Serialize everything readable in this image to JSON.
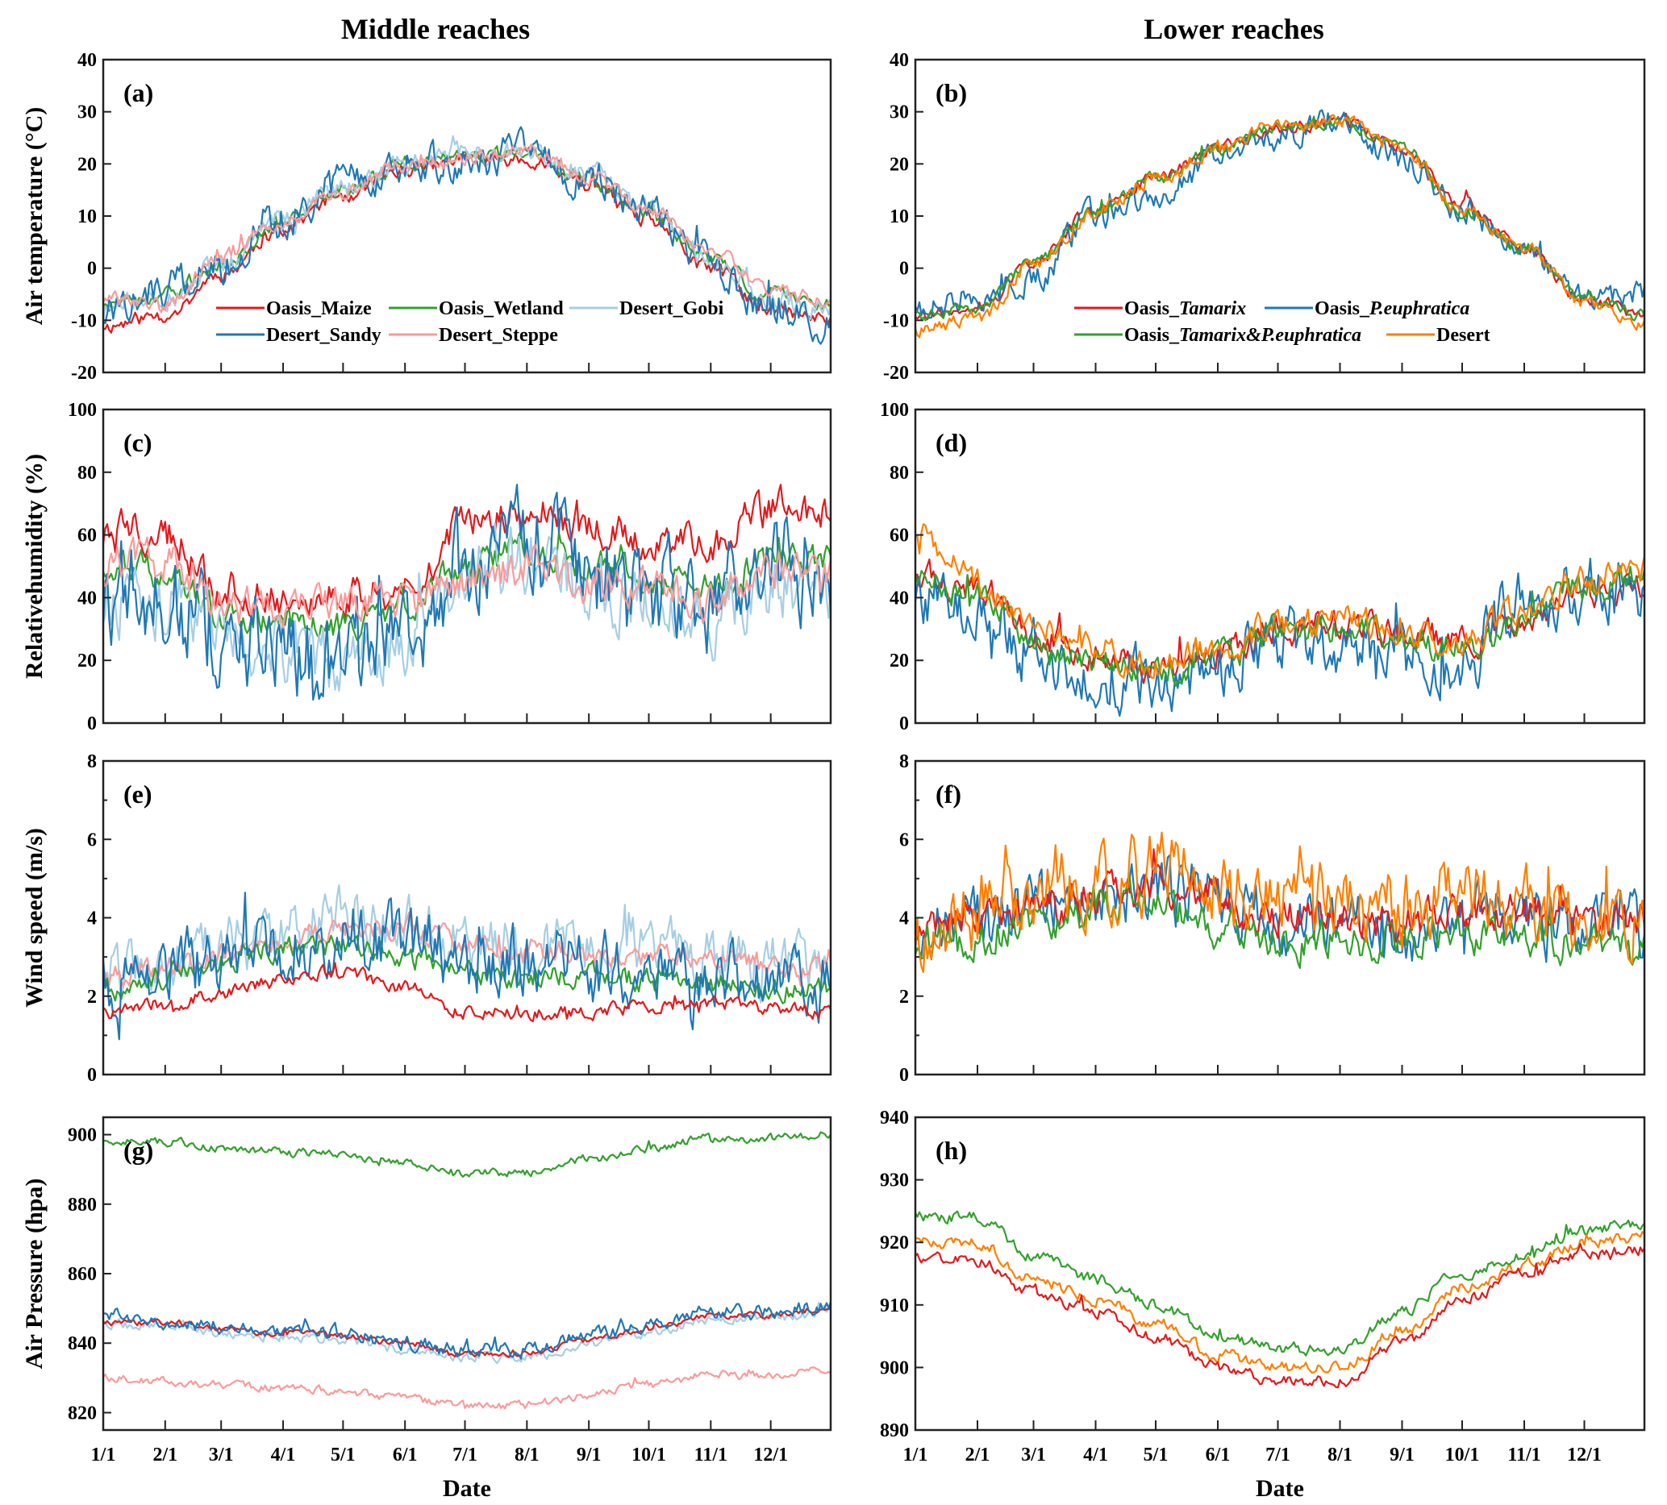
{
  "figure": {
    "column_titles": [
      "Middle reaches",
      "Lower reaches"
    ],
    "x_label": "Date"
  },
  "chart_data": [
    {
      "id": "a",
      "type": "line",
      "tag": "(a)",
      "column": "Middle reaches",
      "title": "",
      "xlabel": "",
      "ylabel": "Air temperature (°C)",
      "ylim": [
        -20,
        40
      ],
      "yticks": [
        -20,
        -10,
        0,
        10,
        20,
        30,
        40
      ],
      "x": [
        "1/1",
        "2/1",
        "3/1",
        "4/1",
        "5/1",
        "6/1",
        "7/1",
        "8/1",
        "9/1",
        "10/1",
        "11/1",
        "12/1",
        "12/31"
      ],
      "xticks": [
        "1/1",
        "2/1",
        "3/1",
        "4/1",
        "5/1",
        "6/1",
        "7/1",
        "8/1",
        "9/1",
        "10/1",
        "11/1",
        "12/1"
      ],
      "show_xticklabels": false,
      "legend": {
        "position": "bottom-center",
        "columns": 3
      },
      "series": [
        {
          "name": "Oasis_Maize",
          "color": "#e31a1c",
          "noise": 1.2,
          "values": [
            -11,
            -9,
            -1,
            8,
            14,
            19,
            21,
            21,
            16,
            9,
            0,
            -8,
            -10
          ]
        },
        {
          "name": "Oasis_Wetland",
          "color": "#33a02c",
          "noise": 1.2,
          "values": [
            -7,
            -5,
            1,
            9,
            15,
            20,
            21,
            22,
            17,
            10,
            2,
            -5,
            -7
          ]
        },
        {
          "name": "Desert_Gobi",
          "color": "#a6cee3",
          "noise": 1.8,
          "values": [
            -8,
            -5,
            1,
            9,
            15,
            20,
            22,
            22,
            18,
            11,
            1,
            -6,
            -8
          ]
        },
        {
          "name": "Desert_Sandy",
          "color": "#1f78b4",
          "noise": 3.0,
          "values": [
            -9,
            -4,
            0,
            10,
            16,
            20,
            21,
            22,
            18,
            11,
            1,
            -8,
            -11
          ]
        },
        {
          "name": "Desert_Steppe",
          "color": "#fb9a99",
          "noise": 1.2,
          "values": [
            -6,
            -7,
            2,
            9,
            15,
            20,
            21,
            23,
            17,
            11,
            3,
            -4,
            -6
          ]
        }
      ]
    },
    {
      "id": "b",
      "type": "line",
      "tag": "(b)",
      "column": "Lower reaches",
      "title": "",
      "xlabel": "",
      "ylabel": "",
      "ylim": [
        -20,
        40
      ],
      "yticks": [
        -20,
        -10,
        0,
        10,
        20,
        30,
        40
      ],
      "x": [
        "1/1",
        "2/1",
        "3/1",
        "4/1",
        "5/1",
        "6/1",
        "7/1",
        "8/1",
        "9/1",
        "10/1",
        "11/1",
        "12/1",
        "12/31"
      ],
      "xticks": [
        "1/1",
        "2/1",
        "3/1",
        "4/1",
        "5/1",
        "6/1",
        "7/1",
        "8/1",
        "9/1",
        "10/1",
        "11/1",
        "12/1"
      ],
      "show_xticklabels": false,
      "legend": {
        "position": "bottom-center",
        "columns": 2
      },
      "series": [
        {
          "name": "Oasis_Tamarix",
          "name_parts": [
            "Oasis_",
            "Tamarix"
          ],
          "color": "#e31a1c",
          "noise": 1.0,
          "values": [
            -9,
            -8,
            1,
            11,
            17,
            23,
            27,
            28,
            23,
            12,
            4,
            -6,
            -9
          ]
        },
        {
          "name": "Oasis_P.euphratica",
          "name_parts": [
            "Oasis_",
            "P.euphratica"
          ],
          "color": "#1f78b4",
          "noise": 2.2,
          "values": [
            -8,
            -5,
            -2,
            10,
            14,
            22,
            25,
            28,
            21,
            12,
            3,
            -6,
            -5
          ]
        },
        {
          "name": "Oasis_Tamarix&P.euphratica",
          "name_parts": [
            "Oasis_",
            "Tamarix&P.euphratica"
          ],
          "color": "#33a02c",
          "noise": 1.0,
          "values": [
            -9,
            -8,
            1,
            11,
            17,
            23,
            27,
            28,
            23,
            11,
            4,
            -6,
            -9
          ]
        },
        {
          "name": "Desert",
          "name_parts": [
            "Desert",
            ""
          ],
          "color": "#ff7f00",
          "noise": 1.2,
          "values": [
            -12,
            -10,
            1,
            11,
            17,
            23,
            28,
            28,
            23,
            11,
            4,
            -7,
            -11
          ]
        }
      ]
    },
    {
      "id": "c",
      "type": "line",
      "tag": "(c)",
      "column": "Middle reaches",
      "title": "",
      "xlabel": "",
      "ylabel": "Relativehumidity (%)",
      "ylim": [
        0,
        100
      ],
      "yticks": [
        0,
        20,
        40,
        60,
        80,
        100
      ],
      "x": [
        "1/1",
        "2/1",
        "3/1",
        "4/1",
        "5/1",
        "6/1",
        "7/1",
        "8/1",
        "9/1",
        "10/1",
        "11/1",
        "12/1",
        "12/31"
      ],
      "xticks": [
        "1/1",
        "2/1",
        "3/1",
        "4/1",
        "5/1",
        "6/1",
        "7/1",
        "8/1",
        "9/1",
        "10/1",
        "11/1",
        "12/1"
      ],
      "show_xticklabels": false,
      "series": [
        {
          "name": "Oasis_Maize",
          "color": "#e31a1c",
          "noise": 5,
          "values": [
            62,
            60,
            42,
            40,
            40,
            42,
            62,
            68,
            62,
            58,
            55,
            68,
            66
          ]
        },
        {
          "name": "Oasis_Wetland",
          "color": "#33a02c",
          "noise": 4,
          "values": [
            52,
            48,
            35,
            32,
            30,
            38,
            50,
            55,
            50,
            46,
            44,
            52,
            52
          ]
        },
        {
          "name": "Desert_Gobi",
          "color": "#a6cee3",
          "noise": 9,
          "values": [
            40,
            38,
            28,
            22,
            18,
            25,
            48,
            52,
            45,
            38,
            32,
            45,
            45
          ]
        },
        {
          "name": "Desert_Sandy",
          "color": "#1f78b4",
          "noise": 13,
          "values": [
            44,
            40,
            30,
            25,
            20,
            28,
            50,
            55,
            48,
            42,
            40,
            52,
            50
          ]
        },
        {
          "name": "Desert_Steppe",
          "color": "#fb9a99",
          "noise": 5,
          "values": [
            50,
            52,
            38,
            34,
            38,
            40,
            45,
            50,
            45,
            42,
            38,
            50,
            46
          ]
        }
      ]
    },
    {
      "id": "d",
      "type": "line",
      "tag": "(d)",
      "column": "Lower reaches",
      "title": "",
      "xlabel": "",
      "ylabel": "",
      "ylim": [
        0,
        100
      ],
      "yticks": [
        0,
        20,
        40,
        60,
        80,
        100
      ],
      "x": [
        "1/1",
        "2/1",
        "3/1",
        "4/1",
        "5/1",
        "6/1",
        "7/1",
        "8/1",
        "9/1",
        "10/1",
        "11/1",
        "12/1",
        "12/31"
      ],
      "xticks": [
        "1/1",
        "2/1",
        "3/1",
        "4/1",
        "5/1",
        "6/1",
        "7/1",
        "8/1",
        "9/1",
        "10/1",
        "11/1",
        "12/1"
      ],
      "show_xticklabels": false,
      "series": [
        {
          "name": "Oasis_Tamarix",
          "color": "#e31a1c",
          "noise": 4,
          "values": [
            48,
            42,
            28,
            22,
            18,
            22,
            30,
            32,
            28,
            26,
            34,
            42,
            44
          ]
        },
        {
          "name": "Oasis_P.euphratica",
          "color": "#1f78b4",
          "noise": 8,
          "values": [
            40,
            35,
            22,
            16,
            14,
            18,
            26,
            26,
            22,
            20,
            38,
            40,
            42
          ]
        },
        {
          "name": "Oasis_Tamarix&P.euphratica",
          "color": "#33a02c",
          "noise": 4,
          "values": [
            48,
            40,
            27,
            21,
            17,
            21,
            29,
            30,
            27,
            24,
            33,
            44,
            46
          ]
        },
        {
          "name": "Desert",
          "color": "#ff7f00",
          "noise": 4,
          "values": [
            60,
            45,
            30,
            24,
            19,
            23,
            31,
            33,
            28,
            26,
            36,
            46,
            48
          ]
        }
      ]
    },
    {
      "id": "e",
      "type": "line",
      "tag": "(e)",
      "column": "Middle reaches",
      "title": "",
      "xlabel": "",
      "ylabel": "Wind speed (m/s)",
      "ylim": [
        0,
        8
      ],
      "yticks": [
        0,
        2,
        4,
        6,
        8
      ],
      "x": [
        "1/1",
        "2/1",
        "3/1",
        "4/1",
        "5/1",
        "6/1",
        "7/1",
        "8/1",
        "9/1",
        "10/1",
        "11/1",
        "12/1",
        "12/31"
      ],
      "xticks": [
        "1/1",
        "2/1",
        "3/1",
        "4/1",
        "5/1",
        "6/1",
        "7/1",
        "8/1",
        "9/1",
        "10/1",
        "11/1",
        "12/1"
      ],
      "show_xticklabels": false,
      "series": [
        {
          "name": "Desert_Gobi",
          "color": "#a6cee3",
          "noise": 0.6,
          "values": [
            2.6,
            2.9,
            3.2,
            3.6,
            4.0,
            3.7,
            3.4,
            3.3,
            3.2,
            3.1,
            3.0,
            2.8,
            2.7
          ]
        },
        {
          "name": "Desert_Steppe",
          "color": "#fb9a99",
          "noise": 0.25,
          "values": [
            2.5,
            2.8,
            3.1,
            3.4,
            3.7,
            3.8,
            3.3,
            3.2,
            3.1,
            3.0,
            3.0,
            2.8,
            2.6
          ]
        },
        {
          "name": "Oasis_Wetland",
          "color": "#33a02c",
          "noise": 0.25,
          "values": [
            2.1,
            2.5,
            2.9,
            3.2,
            3.3,
            3.0,
            2.6,
            2.5,
            2.5,
            2.4,
            2.3,
            2.2,
            2.1
          ]
        },
        {
          "name": "Desert_Sandy",
          "color": "#1f78b4",
          "noise": 0.75,
          "values": [
            2.4,
            2.6,
            3.0,
            3.3,
            3.6,
            3.4,
            3.0,
            2.9,
            2.8,
            2.7,
            2.4,
            2.3,
            2.2
          ]
        },
        {
          "name": "Oasis_Maize",
          "color": "#e31a1c",
          "noise": 0.15,
          "values": [
            1.6,
            1.8,
            2.1,
            2.4,
            2.6,
            2.2,
            1.6,
            1.6,
            1.6,
            1.7,
            1.8,
            1.7,
            1.6
          ]
        }
      ]
    },
    {
      "id": "f",
      "type": "line",
      "tag": "(f)",
      "column": "Lower reaches",
      "title": "",
      "xlabel": "",
      "ylabel": "",
      "ylim": [
        0,
        8
      ],
      "yticks": [
        0,
        2,
        4,
        6,
        8
      ],
      "x": [
        "1/1",
        "2/1",
        "3/1",
        "4/1",
        "5/1",
        "6/1",
        "7/1",
        "8/1",
        "9/1",
        "10/1",
        "11/1",
        "12/1",
        "12/31"
      ],
      "xticks": [
        "1/1",
        "2/1",
        "3/1",
        "4/1",
        "5/1",
        "6/1",
        "7/1",
        "8/1",
        "9/1",
        "10/1",
        "11/1",
        "12/1"
      ],
      "show_xticklabels": false,
      "series": [
        {
          "name": "Oasis_P.euphratica",
          "color": "#1f78b4",
          "noise": 0.7,
          "values": [
            3.6,
            3.8,
            4.2,
            4.4,
            4.7,
            4.4,
            3.9,
            3.9,
            3.8,
            3.9,
            4.0,
            3.7,
            3.6
          ]
        },
        {
          "name": "Oasis_Tamarix",
          "color": "#e31a1c",
          "noise": 0.4,
          "values": [
            3.8,
            3.9,
            4.2,
            4.5,
            4.8,
            4.4,
            4.0,
            4.0,
            3.9,
            4.1,
            4.1,
            3.8,
            3.9
          ]
        },
        {
          "name": "Oasis_Tamarix&P.euphratica",
          "color": "#33a02c",
          "noise": 0.4,
          "values": [
            3.3,
            3.5,
            3.9,
            4.1,
            4.3,
            3.8,
            3.4,
            3.5,
            3.4,
            3.5,
            3.6,
            3.3,
            3.4
          ]
        },
        {
          "name": "Desert",
          "color": "#ff7f00",
          "noise": 0.75,
          "values": [
            3.6,
            4.0,
            4.5,
            4.9,
            5.2,
            4.8,
            4.6,
            4.4,
            4.3,
            4.6,
            4.4,
            4.0,
            4.0
          ]
        }
      ]
    },
    {
      "id": "g",
      "type": "line",
      "tag": "(g)",
      "column": "Middle reaches",
      "title": "",
      "xlabel": "Date",
      "ylabel": "Air Pressure (hpa)",
      "ylim": [
        815,
        905
      ],
      "yticks": [
        820,
        840,
        860,
        880,
        900
      ],
      "x": [
        "1/1",
        "2/1",
        "3/1",
        "4/1",
        "5/1",
        "6/1",
        "7/1",
        "8/1",
        "9/1",
        "10/1",
        "11/1",
        "12/1",
        "12/31"
      ],
      "xticks": [
        "1/1",
        "2/1",
        "3/1",
        "4/1",
        "5/1",
        "6/1",
        "7/1",
        "8/1",
        "9/1",
        "10/1",
        "11/1",
        "12/1"
      ],
      "show_xticklabels": true,
      "series": [
        {
          "name": "Oasis_Wetland",
          "color": "#33a02c",
          "noise": 1.0,
          "values": [
            898,
            898,
            896,
            895,
            894,
            892,
            889,
            889,
            893,
            896,
            899,
            899,
            900
          ]
        },
        {
          "name": "Desert_Gobi",
          "color": "#a6cee3",
          "noise": 1.2,
          "values": [
            845,
            845,
            843,
            842,
            841,
            838,
            836,
            836,
            840,
            843,
            847,
            847,
            849
          ]
        },
        {
          "name": "Oasis_Maize",
          "color": "#e31a1c",
          "noise": 0.8,
          "values": [
            846,
            846,
            844,
            843,
            842,
            840,
            837,
            837,
            841,
            844,
            848,
            848,
            850
          ]
        },
        {
          "name": "Desert_Sandy",
          "color": "#1f78b4",
          "noise": 1.8,
          "values": [
            848,
            846,
            845,
            844,
            843,
            840,
            838,
            838,
            842,
            845,
            849,
            849,
            851
          ]
        },
        {
          "name": "Desert_Steppe",
          "color": "#fb9a99",
          "noise": 1.0,
          "values": [
            830,
            829,
            828,
            827,
            826,
            824,
            822,
            822,
            825,
            828,
            831,
            831,
            832
          ]
        }
      ]
    },
    {
      "id": "h",
      "type": "line",
      "tag": "(h)",
      "column": "Lower reaches",
      "title": "",
      "xlabel": "Date",
      "ylabel": "",
      "ylim": [
        890,
        940
      ],
      "yticks": [
        890,
        900,
        910,
        920,
        930,
        940
      ],
      "x": [
        "1/1",
        "2/1",
        "3/1",
        "4/1",
        "5/1",
        "6/1",
        "7/1",
        "8/1",
        "9/1",
        "10/1",
        "11/1",
        "12/1",
        "12/31"
      ],
      "xticks": [
        "1/1",
        "2/1",
        "3/1",
        "4/1",
        "5/1",
        "6/1",
        "7/1",
        "8/1",
        "9/1",
        "10/1",
        "11/1",
        "12/1"
      ],
      "show_xticklabels": true,
      "series": [
        {
          "name": "Oasis_Tamarix&P.euphratica",
          "color": "#33a02c",
          "noise": 0.8,
          "values": [
            924,
            924,
            918,
            914,
            910,
            905,
            903,
            903,
            909,
            915,
            918,
            922,
            923
          ]
        },
        {
          "name": "Desert",
          "color": "#ff7f00",
          "noise": 0.8,
          "values": [
            920,
            920,
            914,
            911,
            907,
            902,
            900,
            900,
            906,
            913,
            916,
            920,
            921
          ]
        },
        {
          "name": "Oasis_Tamarix",
          "color": "#e31a1c",
          "noise": 0.8,
          "values": [
            917,
            917,
            912,
            909,
            905,
            900,
            898,
            898,
            904,
            911,
            915,
            918,
            919
          ]
        }
      ]
    }
  ]
}
